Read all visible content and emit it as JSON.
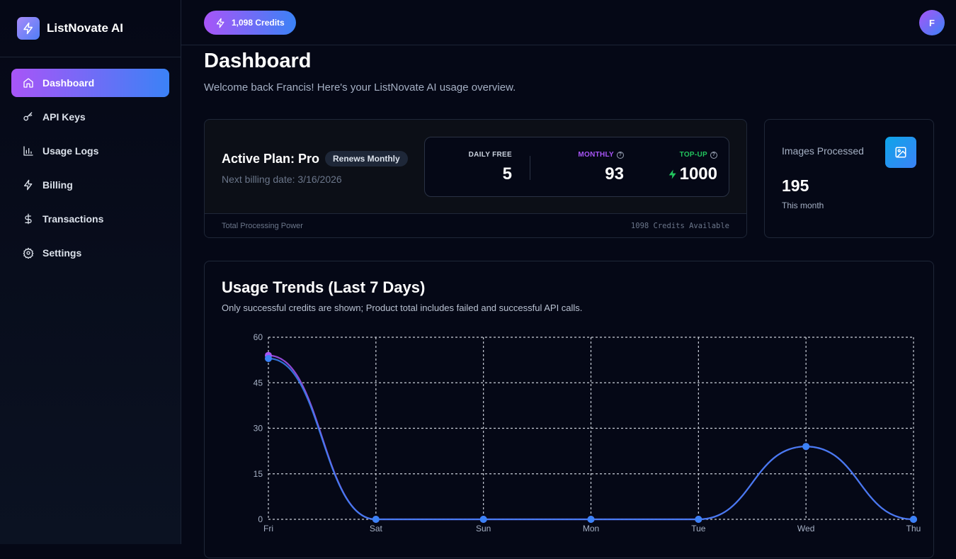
{
  "app": {
    "name": "ListNovate AI"
  },
  "sidebar": {
    "items": [
      {
        "label": "Dashboard",
        "icon": "home-icon",
        "active": true
      },
      {
        "label": "API Keys",
        "icon": "key-icon"
      },
      {
        "label": "Usage Logs",
        "icon": "bar-chart-icon"
      },
      {
        "label": "Billing",
        "icon": "zap-icon"
      },
      {
        "label": "Transactions",
        "icon": "dollar-icon"
      },
      {
        "label": "Settings",
        "icon": "gear-icon"
      }
    ]
  },
  "header": {
    "credits": "1,098 Credits",
    "avatar": "F"
  },
  "page": {
    "title": "Dashboard",
    "welcome": "Welcome back Francis! Here's your ListNovate AI usage overview."
  },
  "plan": {
    "title": "Active Plan: Pro",
    "badge": "Renews Monthly",
    "next_billing": "Next billing date: 3/16/2026",
    "daily_label": "DAILY FREE",
    "daily": "5",
    "monthly_label": "MONTHLY",
    "monthly": "93",
    "topup_label": "TOP-UP",
    "topup": "1000",
    "footer_left": "Total Processing Power",
    "footer_right": "1098 Credits Available"
  },
  "images": {
    "label": "Images Processed",
    "value": "195",
    "sub": "This month"
  },
  "colors": {
    "purple": "#a855f7",
    "blue": "#3b82f6",
    "green": "#22c55e"
  },
  "trend": {
    "title": "Usage Trends (Last 7 Days)",
    "subtitle": "Only successful credits are shown; Product total includes failed and successful API calls."
  },
  "chart_data": {
    "type": "line",
    "categories": [
      "Fri",
      "Sat",
      "Sun",
      "Mon",
      "Tue",
      "Wed",
      "Thu"
    ],
    "ylim": [
      0,
      60
    ],
    "yticks": [
      0,
      15,
      30,
      45,
      60
    ],
    "grid": true,
    "series": [
      {
        "color": "#a855f7",
        "values": [
          54,
          0,
          0,
          0,
          0,
          24,
          0
        ]
      },
      {
        "color": "#3b82f6",
        "values": [
          53,
          0,
          0,
          0,
          0,
          24,
          0
        ]
      }
    ]
  }
}
